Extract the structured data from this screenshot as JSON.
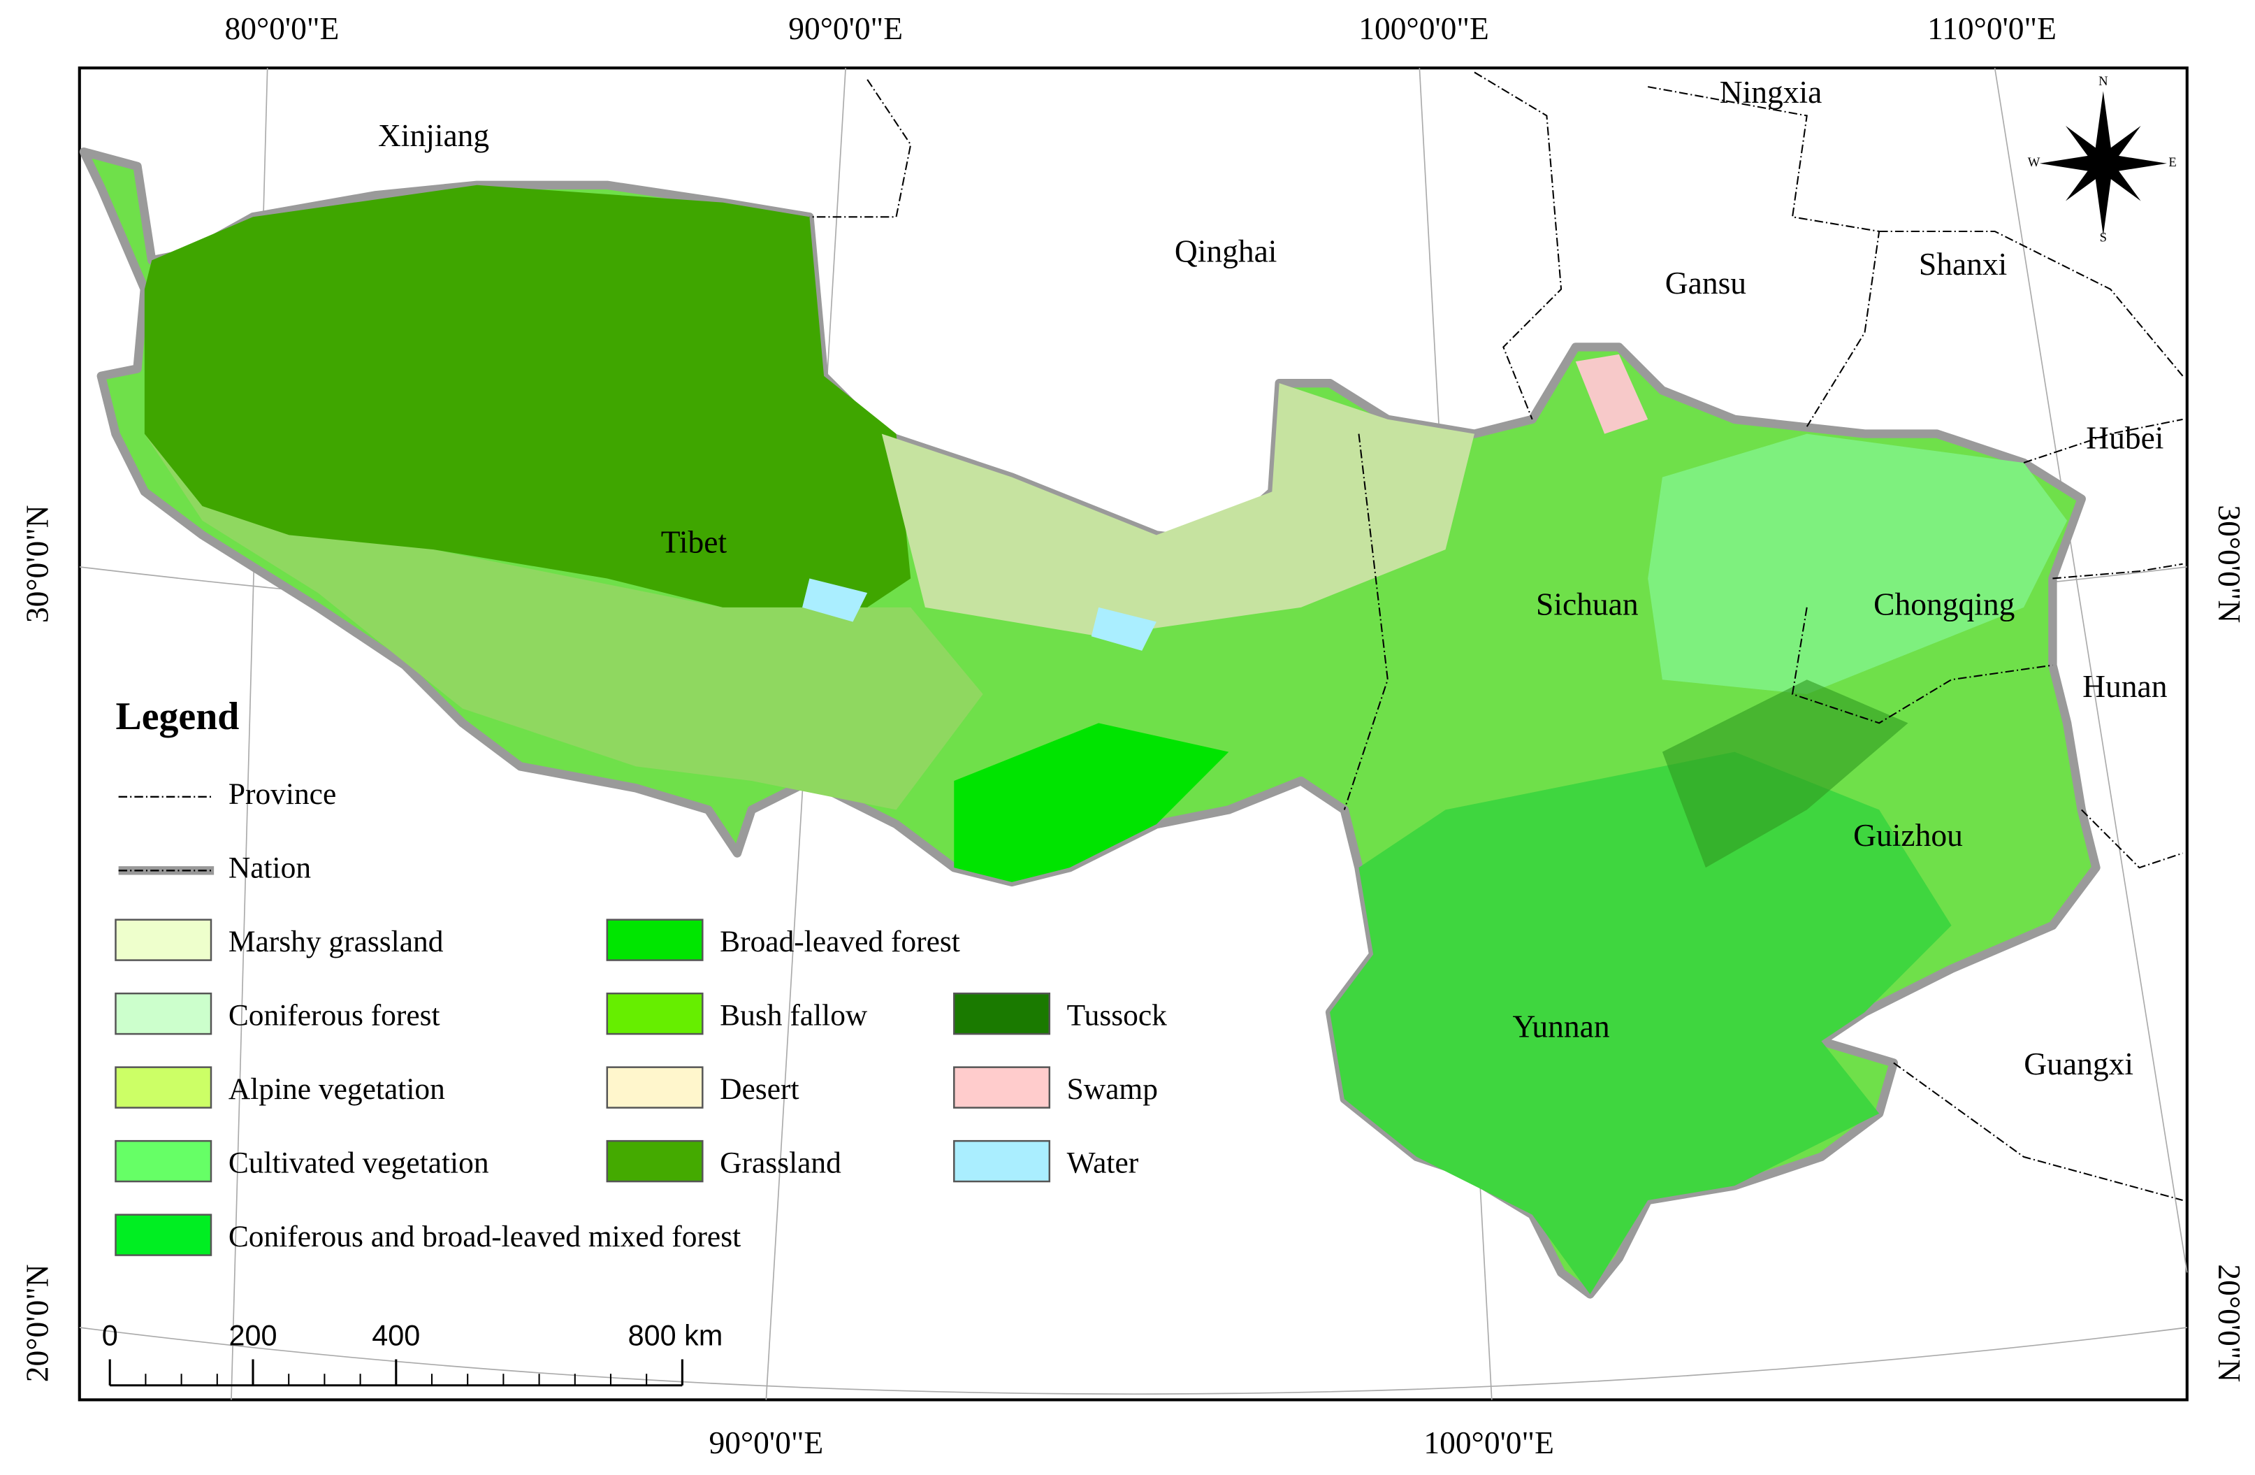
{
  "map": {
    "top_labels": [
      "80°0'0\"E",
      "90°0'0\"E",
      "100°0'0\"E",
      "110°0'0\"E"
    ],
    "bottom_labels": [
      "90°0'0\"E",
      "100°0'0\"E"
    ],
    "left_labels": [
      "30°0'0\"N",
      "20°0'0\"N"
    ],
    "right_labels": [
      "30°0'0\"N",
      "20°0'0\"N"
    ],
    "provinces": [
      "Xinjiang",
      "Qinghai",
      "Ningxia",
      "Gansu",
      "Shanxi",
      "Hubei",
      "Tibet",
      "Sichuan",
      "Chongqing",
      "Hunan",
      "Guizhou",
      "Yunnan",
      "Guangxi"
    ],
    "compass": [
      "N",
      "E",
      "S",
      "W"
    ],
    "legend": {
      "title": "Legend",
      "boundaries": [
        "Province",
        "Nation"
      ],
      "items": [
        {
          "label": "Marshy grassland",
          "color": "#eeffcc"
        },
        {
          "label": "Coniferous forest",
          "color": "#ccffcc"
        },
        {
          "label": "Alpine vegetation",
          "color": "#ccff66"
        },
        {
          "label": "Cultivated vegetation",
          "color": "#66ff66"
        },
        {
          "label": "Coniferous and broad-leaved mixed forest",
          "color": "#00ee22"
        },
        {
          "label": "Broad-leaved forest",
          "color": "#00e600"
        },
        {
          "label": "Bush fallow",
          "color": "#66ee00"
        },
        {
          "label": "Desert",
          "color": "#fff6cc"
        },
        {
          "label": "Grassland",
          "color": "#44aa00"
        },
        {
          "label": "Tussock",
          "color": "#1a7a00"
        },
        {
          "label": "Swamp",
          "color": "#ffcccc"
        },
        {
          "label": "Water",
          "color": "#aaeeff"
        }
      ]
    },
    "scale": {
      "ticks": [
        0,
        200,
        400,
        {
          "value": 800,
          "label": "800 km"
        }
      ],
      "max": 800
    }
  }
}
